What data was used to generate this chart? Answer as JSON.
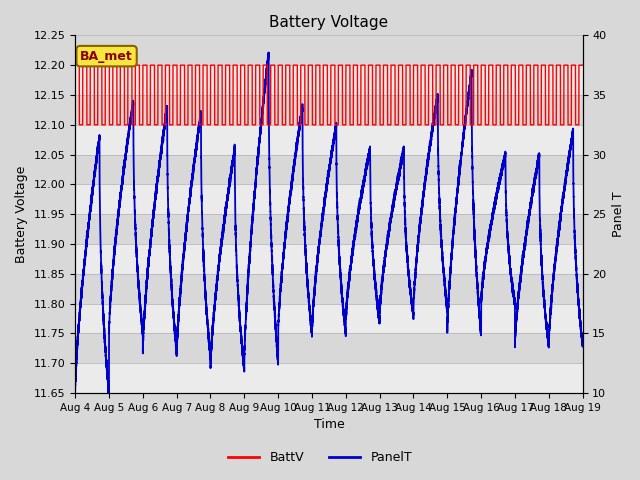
{
  "title": "Battery Voltage",
  "xlabel": "Time",
  "ylabel_left": "Battery Voltage",
  "ylabel_right": "Panel T",
  "annotation": "BA_met",
  "x_tick_labels": [
    "Aug 4",
    "Aug 5",
    "Aug 6",
    "Aug 7",
    "Aug 8",
    "Aug 9",
    "Aug 10",
    "Aug 11",
    "Aug 12",
    "Aug 13",
    "Aug 14",
    "Aug 15",
    "Aug 16",
    "Aug 17",
    "Aug 18",
    "Aug 19"
  ],
  "ylim_left": [
    11.65,
    12.25
  ],
  "ylim_right": [
    10,
    40
  ],
  "background_color": "#d8d8d8",
  "plot_bg_color": "#d8d8d8",
  "grid_color": "#c0c0c0",
  "batt_color": "#ff0000",
  "panel_color": "#0000cc",
  "legend_batt": "BattV",
  "legend_panel": "PanelT",
  "n_days": 15,
  "batt_low": 12.1,
  "batt_high": 12.2,
  "panel_min": 11.65,
  "panel_max": 12.22
}
